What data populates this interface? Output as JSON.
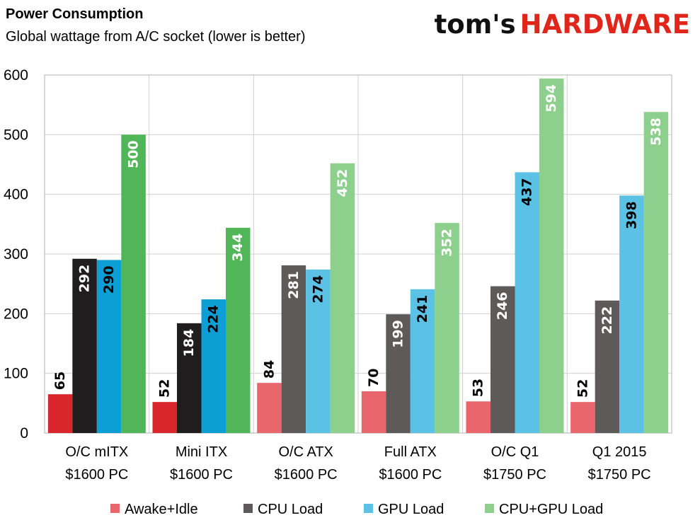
{
  "logo": {
    "part1": "tom's",
    "part2": "HARDWARE"
  },
  "colors": {
    "plot_border": "#b0b0b0",
    "gridline": "#d0d0d0",
    "value_label_dark": "#000000",
    "value_label_light": "#ffffff"
  },
  "chart_data": {
    "type": "bar",
    "title": "Power Consumption",
    "subtitle": "Global wattage from A/C socket (lower is better)",
    "xlabel": "",
    "ylabel": "",
    "ylim": [
      0,
      600
    ],
    "yticks": [
      "0",
      "100",
      "200",
      "300",
      "400",
      "500",
      "600"
    ],
    "grid": true,
    "legend_position": "bottom",
    "categories": [
      [
        "O/C mITX",
        "$1600 PC"
      ],
      [
        "Mini ITX",
        "$1600 PC"
      ],
      [
        "O/C ATX",
        "$1600 PC"
      ],
      [
        "Full ATX",
        "$1600 PC"
      ],
      [
        "O/C Q1",
        "$1750 PC"
      ],
      [
        "Q1 2015",
        "$1750 PC"
      ]
    ],
    "series": [
      {
        "name": "Awake+Idle",
        "color": "#e8666c",
        "values": [
          65,
          52,
          84,
          70,
          53,
          52
        ],
        "colors": [
          "#d9262d",
          "#d9262d",
          "#e8666c",
          "#e8666c",
          "#e8666c",
          "#e8666c"
        ],
        "label_color": "dark"
      },
      {
        "name": "CPU Load",
        "color": "#5f5a5a",
        "values": [
          292,
          184,
          281,
          199,
          246,
          222
        ],
        "colors": [
          "#1f1d1e",
          "#1f1d1e",
          "#5f5a5a",
          "#5f5a5a",
          "#5f5a5a",
          "#5f5a5a"
        ],
        "label_color": "light"
      },
      {
        "name": "GPU Load",
        "color": "#5bc1e5",
        "values": [
          290,
          224,
          274,
          241,
          437,
          398
        ],
        "colors": [
          "#0b9fd3",
          "#0b9fd3",
          "#5bc1e5",
          "#5bc1e5",
          "#5bc1e5",
          "#5bc1e5"
        ],
        "label_color": "dark"
      },
      {
        "name": "CPU+GPU Load",
        "color": "#8dd08d",
        "values": [
          500,
          344,
          452,
          352,
          594,
          538
        ],
        "colors": [
          "#50b657",
          "#50b657",
          "#8dd08d",
          "#8dd08d",
          "#8dd08d",
          "#8dd08d"
        ],
        "label_color": "light"
      }
    ]
  }
}
